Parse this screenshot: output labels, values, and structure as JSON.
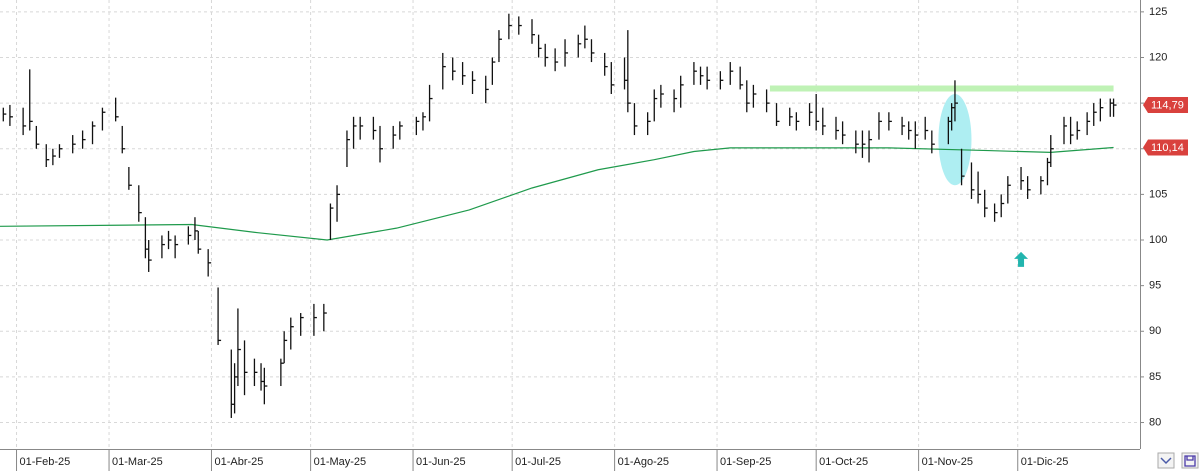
{
  "chart_data": {
    "type": "ohlc",
    "color": "#111111",
    "x": [
      "2025-01-28",
      "2025-01-30",
      "2025-02-03",
      "2025-02-05",
      "2025-02-07",
      "2025-02-10",
      "2025-02-12",
      "2025-02-14",
      "2025-02-18",
      "2025-02-21",
      "2025-02-24",
      "2025-02-27",
      "2025-03-03",
      "2025-03-05",
      "2025-03-07",
      "2025-03-10",
      "2025-03-12",
      "2025-03-13",
      "2025-03-17",
      "2025-03-19",
      "2025-03-21",
      "2025-03-25",
      "2025-03-27",
      "2025-03-28",
      "2025-03-31",
      "2025-04-03",
      "2025-04-07",
      "2025-04-08",
      "2025-04-09",
      "2025-04-11",
      "2025-04-14",
      "2025-04-16",
      "2025-04-17",
      "2025-04-22",
      "2025-04-23",
      "2025-04-25",
      "2025-04-28",
      "2025-05-02",
      "2025-05-05",
      "2025-05-07",
      "2025-05-09",
      "2025-05-12",
      "2025-05-14",
      "2025-05-16",
      "2025-05-20",
      "2025-05-22",
      "2025-05-26",
      "2025-05-28",
      "2025-06-02",
      "2025-06-04",
      "2025-06-06",
      "2025-06-10",
      "2025-06-13",
      "2025-06-16",
      "2025-06-19",
      "2025-06-23",
      "2025-06-25",
      "2025-06-27",
      "2025-06-30",
      "2025-07-03",
      "2025-07-07",
      "2025-07-09",
      "2025-07-11",
      "2025-07-14",
      "2025-07-17",
      "2025-07-21",
      "2025-07-23",
      "2025-07-25",
      "2025-07-29",
      "2025-07-31",
      "2025-08-04",
      "2025-08-05",
      "2025-08-07",
      "2025-08-11",
      "2025-08-13",
      "2025-08-15",
      "2025-08-19",
      "2025-08-21",
      "2025-08-25",
      "2025-08-27",
      "2025-08-29",
      "2025-09-02",
      "2025-09-05",
      "2025-09-08",
      "2025-09-10",
      "2025-09-12",
      "2025-09-16",
      "2025-09-19",
      "2025-09-23",
      "2025-09-25",
      "2025-09-29",
      "2025-10-01",
      "2025-10-03",
      "2025-10-07",
      "2025-10-09",
      "2025-10-13",
      "2025-10-15",
      "2025-10-17",
      "2025-10-20",
      "2025-10-23",
      "2025-10-27",
      "2025-10-29",
      "2025-10-31",
      "2025-11-03",
      "2025-11-05",
      "2025-11-10",
      "2025-11-11",
      "2025-11-12",
      "2025-11-14",
      "2025-11-17",
      "2025-11-19",
      "2025-11-21",
      "2025-11-24",
      "2025-11-26",
      "2025-11-28",
      "2025-12-02",
      "2025-12-04",
      "2025-12-08",
      "2025-12-10",
      "2025-12-11",
      "2025-12-15",
      "2025-12-17",
      "2025-12-19",
      "2025-12-22",
      "2025-12-24",
      "2025-12-26",
      "2025-12-29",
      "2025-12-30"
    ],
    "high": [
      114.5,
      114.8,
      114.5,
      118.7,
      112.5,
      110.5,
      110,
      110.5,
      111.5,
      112,
      113,
      114.5,
      115.6,
      112.5,
      108,
      106,
      102.5,
      100,
      100.5,
      101,
      100.5,
      101.5,
      102.5,
      101,
      99,
      94.8,
      88,
      86.5,
      92.5,
      89,
      87,
      86.5,
      86,
      87,
      90,
      91.5,
      92,
      93,
      93,
      104,
      106,
      112,
      113.5,
      113.5,
      113.5,
      112.5,
      112.5,
      113,
      113.5,
      114,
      117,
      120.5,
      120,
      119.5,
      118.5,
      118,
      120,
      123,
      124.8,
      124.5,
      124.2,
      122.5,
      121.5,
      121,
      122,
      122.5,
      123.5,
      122,
      120.5,
      119.5,
      120,
      123,
      115,
      114,
      116.5,
      117,
      116.5,
      118,
      119.5,
      119,
      119,
      118.5,
      119.5,
      119,
      117.5,
      117,
      116.5,
      115,
      114.5,
      114,
      115,
      116,
      114.5,
      113.5,
      113,
      112,
      112,
      112,
      114,
      114,
      113.5,
      113,
      113,
      113.5,
      112,
      113.5,
      115,
      117.5,
      110,
      108.5,
      107.5,
      105.5,
      104,
      105,
      107,
      108,
      107,
      107,
      109,
      111.5,
      113.5,
      113.5,
      113,
      114,
      115,
      115.5,
      115.5,
      115.5
    ],
    "low": [
      113,
      112.5,
      111.5,
      112,
      110,
      108,
      108.2,
      109,
      109.5,
      110,
      110.5,
      112,
      113,
      109.5,
      105.5,
      102,
      98,
      96.5,
      98,
      99,
      98,
      99.5,
      100,
      98.5,
      96,
      88.5,
      80.5,
      81,
      84,
      83,
      84,
      83.5,
      82,
      84,
      86.5,
      88,
      89.5,
      89.5,
      90,
      100,
      102,
      108,
      110,
      111,
      111,
      108.5,
      110,
      111,
      111.5,
      112,
      113,
      116.5,
      117.5,
      117,
      116,
      115,
      117,
      119.5,
      122,
      122.5,
      121.5,
      120,
      119,
      118.5,
      119,
      120,
      121,
      119.5,
      118,
      116,
      116.5,
      114,
      111.5,
      111.5,
      113,
      114.5,
      114,
      114.5,
      117,
      117,
      116.5,
      116.5,
      117,
      116.5,
      114,
      114.5,
      114,
      112.5,
      112.5,
      112,
      112.5,
      112,
      111.5,
      111,
      110.5,
      109.5,
      109,
      108.5,
      111,
      112,
      111.5,
      111,
      110,
      111,
      109.5,
      110.5,
      112,
      113,
      106,
      104.5,
      104,
      102.5,
      102,
      102.5,
      104,
      105.5,
      104.5,
      105,
      106,
      108,
      110.5,
      110.5,
      111,
      111.5,
      112.5,
      113,
      113.5,
      113.5
    ],
    "close": [
      113.8,
      113.5,
      112.5,
      113,
      110.5,
      108.8,
      109.2,
      110,
      110.5,
      111,
      112.5,
      114,
      113.5,
      110,
      106,
      103,
      99,
      97.8,
      99.5,
      100,
      99.5,
      100.5,
      101,
      99,
      97.5,
      89,
      82,
      85,
      88,
      85.5,
      85.5,
      84.5,
      84,
      86.5,
      89,
      90.5,
      91.5,
      91.5,
      92,
      103.5,
      105,
      111,
      112.5,
      112.5,
      112,
      110,
      111.5,
      112.5,
      113,
      113.5,
      115.5,
      119,
      118.5,
      118,
      117.5,
      116.5,
      119.5,
      122,
      123.5,
      123.5,
      122.5,
      121,
      120,
      119.5,
      120.5,
      121.5,
      122,
      120.5,
      119,
      117,
      117.5,
      115,
      112.5,
      113,
      115.5,
      116,
      115.5,
      117,
      118.5,
      118,
      117.5,
      117.5,
      118.5,
      117,
      115,
      116,
      115,
      113,
      113.5,
      113,
      114,
      113,
      112.5,
      112,
      111.5,
      110.5,
      110.5,
      111,
      113,
      113,
      112.5,
      112,
      111.5,
      112,
      110.5,
      113,
      114.5,
      115,
      107,
      105.5,
      105,
      103.5,
      103,
      104,
      106,
      106.5,
      105.5,
      106.5,
      108.5,
      110,
      112.5,
      111.5,
      112,
      113,
      114,
      114.5,
      115,
      114.79
    ],
    "lines": [
      {
        "color": "#1f9a4c",
        "x": [
          "2025-01-27",
          "2025-03-26",
          "2025-04-15",
          "2025-05-06",
          "2025-05-27",
          "2025-06-18",
          "2025-07-07",
          "2025-07-27",
          "2025-08-13",
          "2025-08-25",
          "2025-09-05",
          "2025-10-23",
          "2025-11-22",
          "2025-12-11",
          "2025-12-30"
        ],
        "values": [
          101.5,
          101.7,
          100.8,
          100,
          101.3,
          103.3,
          105.7,
          107.7,
          108.8,
          109.7,
          110.1,
          110.1,
          109.8,
          109.6,
          110.14
        ]
      }
    ],
    "hline": {
      "value": 116.6,
      "x": [
        "2025-09-17",
        "2025-12-30"
      ],
      "color": "#bff2b5"
    },
    "highlight": {
      "x": [
        "2025-11-07",
        "2025-11-17"
      ],
      "y": [
        106,
        116
      ],
      "color": "#aeeef2"
    },
    "arrow": {
      "x": "2025-12-02",
      "y": 98.7,
      "color": "#22b5ae"
    },
    "price_tags": [
      {
        "value": 114.79,
        "label": "114,79"
      },
      {
        "value": 110.14,
        "label": "110,14"
      }
    ],
    "tag_color": "#d9413d",
    "xlim": [
      "2025-01-27",
      "2026-01-07"
    ],
    "xticks": [
      {
        "value": "2025-02-01",
        "label": "01-Feb-25"
      },
      {
        "value": "2025-03-01",
        "label": "01-Mar-25"
      },
      {
        "value": "2025-04-01",
        "label": "01-Abr-25"
      },
      {
        "value": "2025-05-01",
        "label": "01-May-25"
      },
      {
        "value": "2025-06-01",
        "label": "01-Jun-25"
      },
      {
        "value": "2025-07-01",
        "label": "01-Jul-25"
      },
      {
        "value": "2025-08-01",
        "label": "01-Ago-25"
      },
      {
        "value": "2025-09-01",
        "label": "01-Sep-25"
      },
      {
        "value": "2025-10-01",
        "label": "01-Oct-25"
      },
      {
        "value": "2025-11-01",
        "label": "01-Nov-25"
      },
      {
        "value": "2025-12-01",
        "label": "01-Dic-25"
      }
    ],
    "ylim": [
      77.1,
      126.3
    ],
    "yticks": [
      80,
      85,
      90,
      95,
      100,
      105,
      110,
      115,
      120,
      125
    ],
    "grid": true
  }
}
